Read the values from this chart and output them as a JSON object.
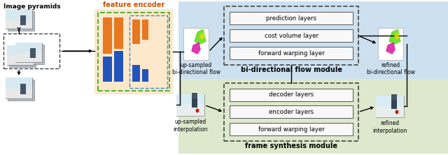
{
  "bg_color": "#ffffff",
  "top_module_bg": "#cce0f0",
  "bottom_module_bg": "#dde8cc",
  "encoder_bg": "#fde8cc",
  "encoder_border_green": "#44aa22",
  "encoder_border_blue": "#4488cc",
  "orange_bar_color": "#e87820",
  "blue_bar_color": "#2255bb",
  "module_box_border": "#444444",
  "layer_box_fill": "#f8f8f8",
  "layer_box_border": "#555555",
  "text_color": "#111111",
  "top_module_label": "bi-directional flow module",
  "bottom_module_label": "frame synthesis module",
  "encoder_label": "feature encoder",
  "top_layers": [
    "forward warping layer",
    "cost volume layer",
    "prediction layers"
  ],
  "bottom_layers": [
    "forward warping layer",
    "encoder layers",
    "decoder layers"
  ],
  "upsampled_flow_label": "up-sampled\nbi-directional flow",
  "refined_flow_label": "refined\nbi-directional flow",
  "upsampled_interp_label": "up-sampled\ninterpolation",
  "refined_interp_label": "refined\ninterpolation",
  "image_pyramids_label": "Image pyramids",
  "dots": "......",
  "img_bg1": "#a8b8c8",
  "img_bg2": "#b8c8d8",
  "img_bg3": "#c0d0e0"
}
